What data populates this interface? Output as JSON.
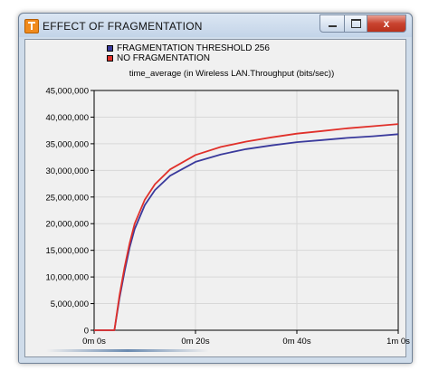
{
  "window": {
    "title": "EFFECT OF FRAGMENTATION",
    "close_glyph": "x",
    "icons": [
      "app-icon",
      "minimize-icon",
      "maximize-icon",
      "close-icon"
    ]
  },
  "chart_data": {
    "type": "line",
    "title": "time_average (in Wireless LAN.Throughput (bits/sec))",
    "xlabel": "",
    "ylabel": "",
    "x_ticks": [
      "0m 0s",
      "0m 20s",
      "0m 40s",
      "1m 0s"
    ],
    "x_tick_values": [
      0,
      20,
      40,
      60
    ],
    "y_ticks": [
      "0",
      "5,000,000",
      "10,000,000",
      "15,000,000",
      "20,000,000",
      "25,000,000",
      "30,000,000",
      "35,000,000",
      "40,000,000",
      "45,000,000"
    ],
    "y_tick_values": [
      0,
      5000000,
      10000000,
      15000000,
      20000000,
      25000000,
      30000000,
      35000000,
      40000000,
      45000000
    ],
    "xlim": [
      0,
      60
    ],
    "ylim": [
      0,
      45000000
    ],
    "grid": true,
    "legend_position": "top",
    "series": [
      {
        "name": "FRAGMENTATION THRESHOLD 256",
        "color": "#3a3a9c",
        "x": [
          0,
          4,
          5,
          6,
          7,
          8,
          10,
          12,
          15,
          20,
          25,
          30,
          35,
          40,
          45,
          50,
          55,
          60
        ],
        "y": [
          0,
          0,
          6000000,
          11000000,
          15500000,
          19000000,
          23500000,
          26300000,
          29000000,
          31600000,
          33000000,
          34000000,
          34700000,
          35300000,
          35700000,
          36100000,
          36400000,
          36800000
        ]
      },
      {
        "name": "NO FRAGMENTATION",
        "color": "#e0302a",
        "x": [
          0,
          4,
          5,
          6,
          7,
          8,
          10,
          12,
          15,
          20,
          25,
          30,
          35,
          40,
          45,
          50,
          55,
          60
        ],
        "y": [
          0,
          0,
          6500000,
          11800000,
          16300000,
          20000000,
          24500000,
          27400000,
          30200000,
          32900000,
          34400000,
          35400000,
          36200000,
          36900000,
          37400000,
          37900000,
          38300000,
          38700000
        ]
      }
    ]
  }
}
